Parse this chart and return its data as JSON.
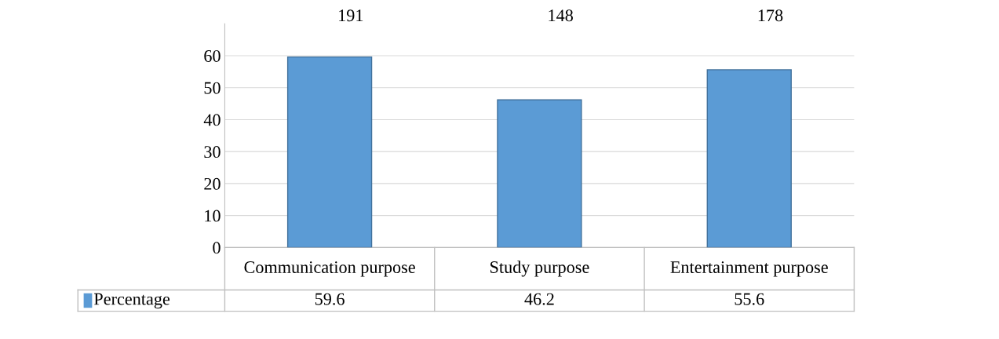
{
  "chart_data": {
    "type": "bar",
    "categories": [
      "Communication purpose",
      "Study purpose",
      "Entertainment purpose"
    ],
    "series": [
      {
        "name": "Percentage",
        "color": "#5b9bd5",
        "values": [
          59.6,
          46.2,
          55.6
        ]
      }
    ],
    "ylim": [
      0,
      70
    ],
    "yticks": [
      0,
      10,
      20,
      30,
      40,
      50,
      60
    ],
    "grid": "y",
    "data_labels": true,
    "legend": "bottom",
    "annotations": [
      "191",
      "148",
      "178"
    ]
  }
}
